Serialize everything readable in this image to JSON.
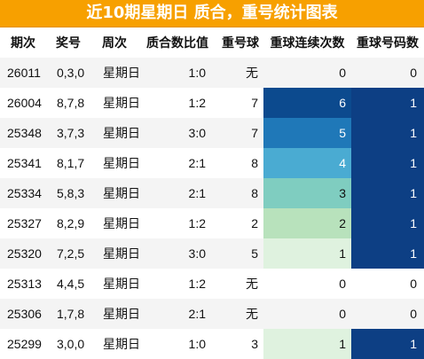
{
  "title": "近10期星期日 质合，重号统计图表",
  "columns": [
    "期次",
    "奖号",
    "周次",
    "质合数比值",
    "重号球",
    "重球连续次数",
    "重球号码数"
  ],
  "colors": {
    "title_bg": "#f7a000",
    "streak_scale": {
      "1": "#dff2df",
      "2": "#b8e2bc",
      "3": "#7fcdc0",
      "4": "#4aabd2",
      "5": "#1f78b8",
      "6": "#0c4a8e"
    },
    "count_color": "#0d3f84"
  },
  "rows": [
    {
      "issue": "26011",
      "numbers": "0,3,0",
      "weekday": "星期日",
      "ratio": "1:0",
      "repeat_ball": "无",
      "streak": 0,
      "count": 0
    },
    {
      "issue": "26004",
      "numbers": "8,7,8",
      "weekday": "星期日",
      "ratio": "1:2",
      "repeat_ball": "7",
      "streak": 6,
      "count": 1
    },
    {
      "issue": "25348",
      "numbers": "3,7,3",
      "weekday": "星期日",
      "ratio": "3:0",
      "repeat_ball": "7",
      "streak": 5,
      "count": 1
    },
    {
      "issue": "25341",
      "numbers": "8,1,7",
      "weekday": "星期日",
      "ratio": "2:1",
      "repeat_ball": "8",
      "streak": 4,
      "count": 1
    },
    {
      "issue": "25334",
      "numbers": "5,8,3",
      "weekday": "星期日",
      "ratio": "2:1",
      "repeat_ball": "8",
      "streak": 3,
      "count": 1
    },
    {
      "issue": "25327",
      "numbers": "8,2,9",
      "weekday": "星期日",
      "ratio": "1:2",
      "repeat_ball": "2",
      "streak": 2,
      "count": 1
    },
    {
      "issue": "25320",
      "numbers": "7,2,5",
      "weekday": "星期日",
      "ratio": "3:0",
      "repeat_ball": "5",
      "streak": 1,
      "count": 1
    },
    {
      "issue": "25313",
      "numbers": "4,4,5",
      "weekday": "星期日",
      "ratio": "1:2",
      "repeat_ball": "无",
      "streak": 0,
      "count": 0
    },
    {
      "issue": "25306",
      "numbers": "1,7,8",
      "weekday": "星期日",
      "ratio": "2:1",
      "repeat_ball": "无",
      "streak": 0,
      "count": 0
    },
    {
      "issue": "25299",
      "numbers": "3,0,0",
      "weekday": "星期日",
      "ratio": "1:0",
      "repeat_ball": "3",
      "streak": 1,
      "count": 1
    }
  ]
}
